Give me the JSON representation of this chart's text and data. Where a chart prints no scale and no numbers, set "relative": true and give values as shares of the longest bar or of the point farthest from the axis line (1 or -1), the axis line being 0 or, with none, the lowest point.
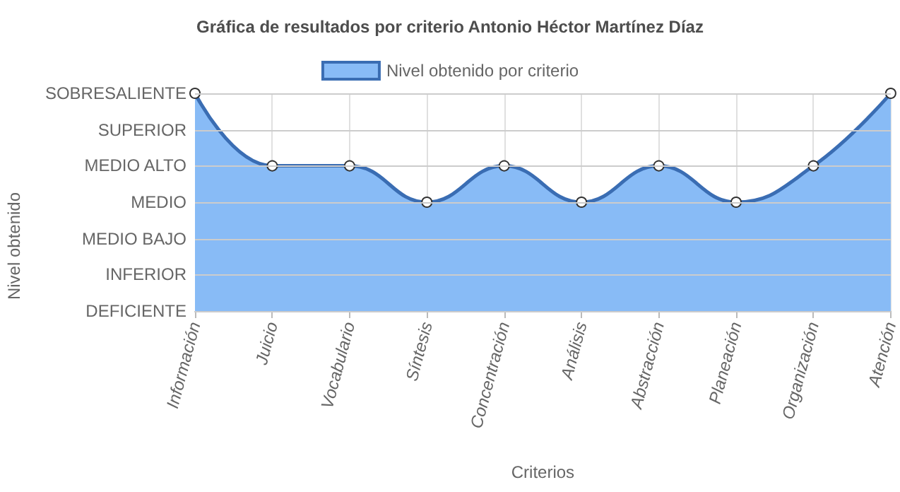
{
  "chart_data": {
    "type": "area",
    "title": "Gráfica de resultados por criterio Antonio Héctor Martínez Díaz",
    "xlabel": "Criterios",
    "annotations": [
      "Nivel obtenido"
    ],
    "categories": [
      "Información",
      "Juicio",
      "Vocabulario",
      "Síntesis",
      "Concentración",
      "Análisis",
      "Abstracción",
      "Planeación",
      "Organización",
      "Atención"
    ],
    "series": [
      {
        "name": "Nivel obtenido por criterio",
        "color": "#88bbf6",
        "values": [
          1,
          0.667,
          0.667,
          0.5,
          0.667,
          0.5,
          0.667,
          0.5,
          0.667,
          1
        ]
      }
    ],
    "relative": true,
    "ref_lines": [
      {
        "axis": "y",
        "value": 1,
        "label": "SOBRESALIENTE",
        "color": "#cccccc"
      },
      {
        "axis": "y",
        "value": 0.833,
        "label": "SUPERIOR",
        "color": "#cccccc"
      },
      {
        "axis": "y",
        "value": 0.667,
        "label": "MEDIO ALTO",
        "color": "#cccccc"
      },
      {
        "axis": "y",
        "value": 0.5,
        "label": "MEDIO",
        "color": "#cccccc"
      },
      {
        "axis": "y",
        "value": 0.333,
        "label": "MEDIO BAJO",
        "color": "#cccccc"
      },
      {
        "axis": "y",
        "value": 0.167,
        "label": "INFERIOR",
        "color": "#cccccc"
      },
      {
        "axis": "y",
        "value": 0,
        "label": "DEFICIENTE",
        "color": "#cccccc"
      }
    ],
    "grid": "x",
    "legend": "top",
    "marker": "circle",
    "line_style": "solid"
  }
}
